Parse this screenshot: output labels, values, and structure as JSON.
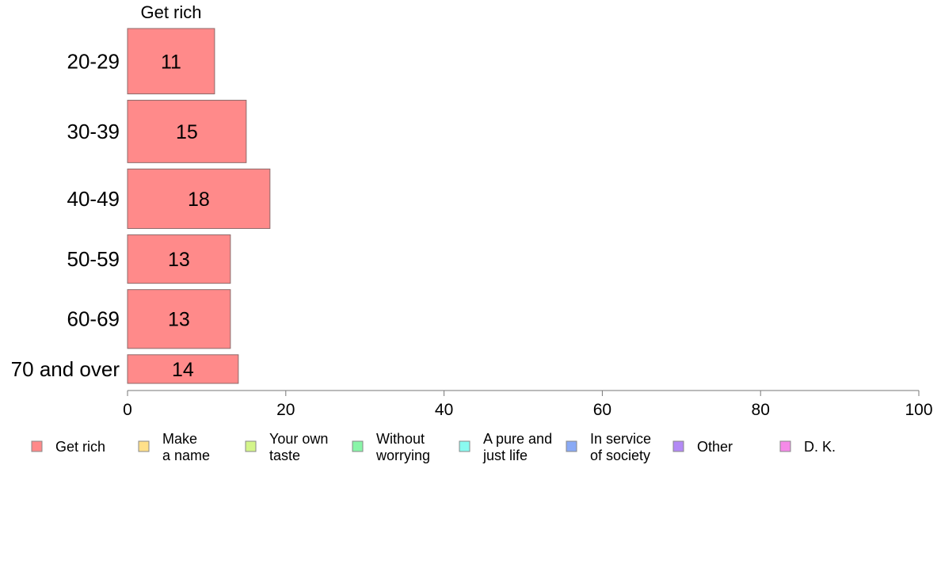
{
  "chart_data": {
    "type": "bar",
    "orientation": "horizontal",
    "panel_title": "Get rich",
    "categories": [
      "20-29",
      "30-39",
      "40-49",
      "50-59",
      "60-69",
      "70 and over"
    ],
    "category_weights": [
      0.89,
      0.85,
      0.81,
      0.66,
      0.8,
      0.39
    ],
    "series": [
      {
        "name": "Get rich",
        "values": [
          11,
          15,
          18,
          13,
          13,
          14
        ],
        "labels": [
          "11",
          "15",
          "18",
          "13",
          "13",
          "14"
        ],
        "color": "#ff8a8a"
      }
    ],
    "xlim": [
      0,
      100
    ],
    "x_ticks": [
      "0",
      "20",
      "40",
      "60",
      "80",
      "100"
    ],
    "grid": false,
    "legend_position": "bottom",
    "legend": [
      {
        "lines": [
          "Get rich"
        ],
        "color": "#ff8a8a"
      },
      {
        "lines": [
          "Make",
          "a name"
        ],
        "color": "#ffe08a"
      },
      {
        "lines": [
          "Your own",
          "taste"
        ],
        "color": "#d4f58a"
      },
      {
        "lines": [
          "Without",
          "worrying"
        ],
        "color": "#8af5a8"
      },
      {
        "lines": [
          "A pure and",
          "just life"
        ],
        "color": "#8afaf0"
      },
      {
        "lines": [
          "In service",
          "of society"
        ],
        "color": "#8aaaf5"
      },
      {
        "lines": [
          "Other"
        ],
        "color": "#b38af5"
      },
      {
        "lines": [
          "D. K."
        ],
        "color": "#f58ae8"
      }
    ]
  }
}
